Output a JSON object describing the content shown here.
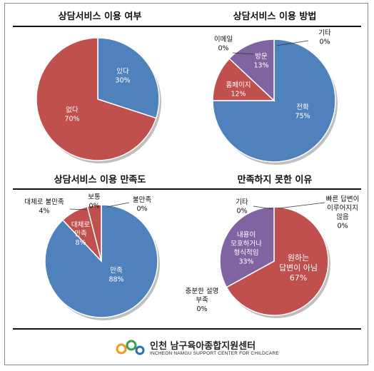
{
  "chart_data": [
    {
      "type": "pie",
      "title": "상담서비스 이용 여부",
      "categories": [
        "있다",
        "없다"
      ],
      "values": [
        30,
        70
      ],
      "labels": [
        "30%",
        "70%"
      ],
      "colors": [
        "#4f81bd",
        "#c0504d"
      ]
    },
    {
      "type": "pie",
      "title": "상담서비스 이용 방법",
      "categories": [
        "전화",
        "홈페이지",
        "방문",
        "이메일",
        "기타"
      ],
      "values": [
        75,
        12,
        13,
        0,
        0
      ],
      "labels": [
        "75%",
        "12%",
        "13%",
        "0%",
        "0%"
      ],
      "colors": [
        "#4f81bd",
        "#c0504d",
        "#8064a2",
        "#9bbb59",
        "#4bacc6"
      ]
    },
    {
      "type": "pie",
      "title": "상담서비스 이용 만족도",
      "categories": [
        "만족",
        "대체로 만족",
        "대체로 불만족",
        "보통",
        "불만족"
      ],
      "values": [
        88,
        8,
        4,
        0,
        0
      ],
      "labels": [
        "88%",
        "8%",
        "4%",
        "0%",
        "0%"
      ],
      "colors": [
        "#4f81bd",
        "#c0504d",
        "#c0504d",
        "#8064a2",
        "#4bacc6"
      ]
    },
    {
      "type": "pie",
      "title": "만족하지 못한 이유",
      "categories": [
        "원하는 답변이 아님",
        "내용이 모호하거나 형식적임",
        "충분한 설명 부족",
        "기타",
        "빠른 답변이 이루어지지 않음"
      ],
      "values": [
        67,
        33,
        0,
        0,
        0
      ],
      "labels": [
        "67%",
        "33%",
        "0%",
        "0%",
        "0%"
      ],
      "colors": [
        "#c0504d",
        "#8064a2",
        "#9bbb59",
        "#4bacc6",
        "#4f81bd"
      ]
    }
  ],
  "footer": {
    "org_name": "인천 남구육아종합지원센터",
    "org_name_en": "INCHEON NAMGU SUPPORT CENTER FOR CHILDCARE",
    "logo_colors": [
      "#f29a1f",
      "#3aa34a",
      "#2d6db5"
    ]
  }
}
